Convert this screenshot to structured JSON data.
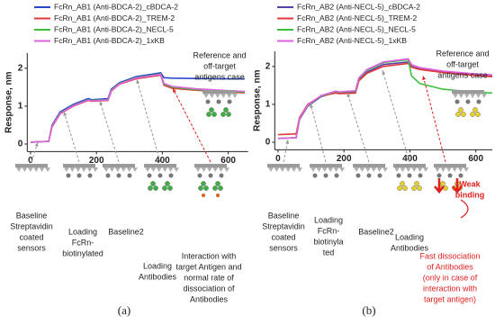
{
  "chart_data": [
    {
      "type": "line",
      "caption": "(a)",
      "ylabel": "Response, nm",
      "xlim": [
        -10,
        660
      ],
      "ylim": [
        -0.2,
        2.4
      ],
      "xticks": [
        0,
        200,
        400,
        600
      ],
      "yticks": [
        0,
        1,
        2
      ],
      "x": [
        0,
        55,
        65,
        90,
        130,
        175,
        185,
        235,
        245,
        270,
        320,
        395,
        405,
        430,
        500,
        600,
        650
      ],
      "series": [
        {
          "name": "FcRn_AB1 (Anti-BDCA-2)_cBDCA-2",
          "color": "#2a48d0",
          "values": [
            0.05,
            0.07,
            0.5,
            0.85,
            1.05,
            1.2,
            1.17,
            1.2,
            1.45,
            1.62,
            1.78,
            1.88,
            1.75,
            1.74,
            1.73,
            1.72,
            1.72
          ]
        },
        {
          "name": "FcRn_AB1 (Anti-BDCA-2)_TREM-2",
          "color": "#e03a3a",
          "values": [
            0.05,
            0.07,
            0.45,
            0.8,
            1.0,
            1.15,
            1.13,
            1.15,
            1.4,
            1.58,
            1.72,
            1.82,
            1.55,
            1.47,
            1.42,
            1.37,
            1.35
          ]
        },
        {
          "name": "FcRn_AB1 (Anti-BDCA-2)_NECL-5",
          "color": "#3cc03c",
          "values": [
            0.05,
            0.07,
            0.48,
            0.82,
            1.02,
            1.17,
            1.15,
            1.17,
            1.42,
            1.6,
            1.75,
            1.85,
            1.58,
            1.5,
            1.44,
            1.39,
            1.37
          ]
        },
        {
          "name": "FcRn_AB1 (Anti-BDCA-2)_1xKB",
          "color": "#e060e0",
          "values": [
            0.05,
            0.07,
            0.47,
            0.81,
            1.01,
            1.16,
            1.14,
            1.16,
            1.41,
            1.59,
            1.74,
            1.84,
            1.6,
            1.52,
            1.46,
            1.41,
            1.39
          ]
        }
      ],
      "annotations": [
        {
          "lines": [
            "Baseline",
            "Streptavidin",
            "coated",
            "sensors"
          ]
        },
        {
          "lines": [
            "Loading",
            "FcRn-",
            "biotinylated"
          ]
        },
        {
          "lines": [
            "Baseline2"
          ]
        },
        {
          "lines": [
            "Loading",
            "Antibodies"
          ]
        },
        {
          "lines": [
            "Interaction with",
            "target Antigen and",
            "normal rate of",
            "dissociation of",
            "Antibodies"
          ]
        },
        {
          "lines": [
            "Reference and",
            "off-target",
            "antigens case"
          ]
        }
      ]
    },
    {
      "type": "line",
      "caption": "(b)",
      "ylabel": "Response, nm",
      "xlim": [
        -10,
        650
      ],
      "ylim": [
        -0.2,
        2.4
      ],
      "xticks": [
        0,
        200,
        400,
        600
      ],
      "yticks": [
        0,
        1,
        2
      ],
      "x": [
        0,
        55,
        65,
        90,
        130,
        175,
        185,
        235,
        245,
        270,
        320,
        395,
        405,
        430,
        500,
        600,
        650
      ],
      "series": [
        {
          "name": "FcRn_AB2 (Anti-NECL-5)_cBDCA-2",
          "color": "#5b3fa8",
          "values": [
            0.1,
            0.12,
            0.6,
            0.95,
            1.2,
            1.32,
            1.3,
            1.33,
            1.65,
            1.85,
            2.05,
            2.12,
            2.0,
            1.93,
            1.85,
            1.77,
            1.74
          ]
        },
        {
          "name": "FcRn_AB2 (Anti-NECL-5)_TREM-2",
          "color": "#e03a3a",
          "values": [
            0.2,
            0.22,
            0.65,
            1.0,
            1.22,
            1.3,
            1.28,
            1.3,
            1.62,
            1.82,
            2.0,
            2.08,
            1.98,
            1.92,
            1.84,
            1.76,
            1.73
          ]
        },
        {
          "name": "FcRn_AB2 (Anti-NECL-5)_NECL-5",
          "color": "#3cc03c",
          "values": [
            0.1,
            0.12,
            0.62,
            0.97,
            1.22,
            1.34,
            1.32,
            1.35,
            1.68,
            1.9,
            2.1,
            2.18,
            1.75,
            1.55,
            1.4,
            1.32,
            1.3
          ]
        },
        {
          "name": "FcRn_AB2 (Anti-NECL-5)_1xKB",
          "color": "#e060e0",
          "values": [
            0.1,
            0.12,
            0.62,
            0.98,
            1.23,
            1.35,
            1.33,
            1.36,
            1.7,
            1.92,
            2.12,
            2.2,
            2.05,
            1.97,
            1.88,
            1.8,
            1.78
          ]
        }
      ],
      "annotations": [
        {
          "lines": [
            "Baseline",
            "Streptavidin",
            "coated",
            "sensors"
          ]
        },
        {
          "lines": [
            "Loading",
            "FcRn-",
            "biotinyla",
            "ted"
          ]
        },
        {
          "lines": [
            "Baseline2"
          ]
        },
        {
          "lines": [
            "Loading",
            "Antibodies"
          ]
        },
        {
          "lines": [
            "Weak",
            "binding"
          ],
          "color": "#e02020",
          "bold": true
        },
        {
          "lines": [
            "Fast dissociation",
            "of Antibodies",
            "(only in case of",
            "interaction with",
            "target antigen)"
          ],
          "color": "#e02020"
        },
        {
          "lines": [
            "Reference and",
            "off-target",
            "antigens case"
          ]
        }
      ]
    }
  ]
}
